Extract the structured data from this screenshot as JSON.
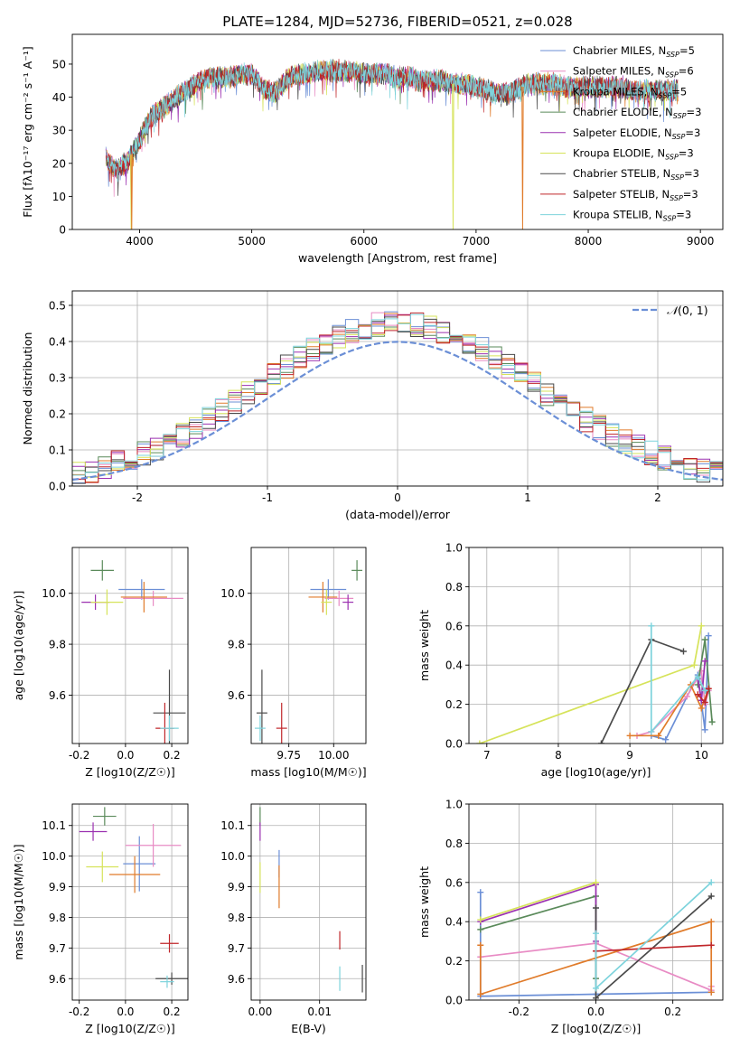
{
  "figure": {
    "title": "PLATE=1284, MJD=52736, FIBERID=0521, z=0.028"
  },
  "colors": {
    "Chabrier MILES": "#6b8fd6",
    "Salpeter MILES": "#e88bc4",
    "Kroupa MILES": "#e07b2a",
    "Chabrier ELODIE": "#5a8a5a",
    "Salpeter ELODIE": "#9b30b0",
    "Kroupa ELODIE": "#d6e35a",
    "Chabrier STELIB": "#4a4a4a",
    "Salpeter STELIB": "#c0262a",
    "Kroupa STELIB": "#7dd3dc"
  },
  "legend": [
    {
      "name": "Chabrier MILES",
      "label": "Chabrier MILES, N",
      "sub": "SSP",
      "tail": "=5"
    },
    {
      "name": "Salpeter MILES",
      "label": "Salpeter MILES, N",
      "sub": "SSP",
      "tail": "=6"
    },
    {
      "name": "Kroupa MILES",
      "label": "Kroupa MILES, N",
      "sub": "SSP",
      "tail": "=5"
    },
    {
      "name": "Chabrier ELODIE",
      "label": "Chabrier ELODIE, N",
      "sub": "SSP",
      "tail": "=3"
    },
    {
      "name": "Salpeter ELODIE",
      "label": "Salpeter ELODIE, N",
      "sub": "SSP",
      "tail": "=3"
    },
    {
      "name": "Kroupa ELODIE",
      "label": "Kroupa ELODIE, N",
      "sub": "SSP",
      "tail": "=3"
    },
    {
      "name": "Chabrier STELIB",
      "label": "Chabrier STELIB, N",
      "sub": "SSP",
      "tail": "=3"
    },
    {
      "name": "Salpeter STELIB",
      "label": "Salpeter STELIB, N",
      "sub": "SSP",
      "tail": "=3"
    },
    {
      "name": "Kroupa STELIB",
      "label": "Kroupa STELIB, N",
      "sub": "SSP",
      "tail": "=3"
    }
  ],
  "chart_data": [
    {
      "id": "spectrum",
      "type": "line",
      "xlabel": "wavelength [Angstrom, rest frame]",
      "ylabel": "Flux [fλ10⁻¹⁷ erg cm⁻² s⁻¹ A⁻¹]",
      "xlim": [
        3400,
        9200
      ],
      "ylim": [
        0,
        59
      ],
      "xticks": [
        4000,
        5000,
        6000,
        7000,
        8000,
        9000
      ],
      "yticks": [
        0,
        10,
        20,
        30,
        40,
        50
      ],
      "grid": false,
      "legend_position": "top-right",
      "continuum": {
        "x": [
          3700,
          3750,
          3800,
          3900,
          4000,
          4100,
          4200,
          4300,
          4400,
          4500,
          4600,
          4700,
          4800,
          4900,
          5000,
          5100,
          5200,
          5300,
          5400,
          5500,
          5600,
          5700,
          5800,
          5900,
          6000,
          6100,
          6200,
          6300,
          6400,
          6500,
          6600,
          6700,
          6800,
          6900,
          7000,
          7100,
          7200,
          7300,
          7400,
          7500,
          7600,
          7700,
          7800,
          7900,
          8000,
          8100,
          8200,
          8300,
          8400,
          8500,
          8600,
          8700,
          8800
        ],
        "y": [
          22,
          19,
          18,
          21,
          27,
          34,
          37,
          39,
          42,
          44,
          46,
          46,
          46,
          47,
          47,
          43,
          41,
          45,
          47,
          47,
          48,
          48,
          48,
          48,
          47,
          47,
          47,
          46,
          46,
          45,
          45,
          45,
          44,
          44,
          43,
          42,
          41,
          41,
          43,
          44,
          44,
          44,
          43,
          43,
          43,
          43,
          43,
          43,
          42,
          42,
          42,
          42,
          42
        ]
      },
      "dips": [
        {
          "series": "Kroupa ELODIE",
          "x": 3925,
          "to": 0
        },
        {
          "series": "Kroupa MILES",
          "x": 3930,
          "to": 0
        },
        {
          "series": "Kroupa ELODIE",
          "x": 6795,
          "to": 0
        },
        {
          "series": "Kroupa MILES",
          "x": 7415,
          "to": 0
        }
      ]
    },
    {
      "id": "residuals",
      "type": "histogram",
      "xlabel": "(data-model)/error",
      "ylabel": "Normed distribution",
      "xlim": [
        -2.5,
        2.5
      ],
      "ylim": [
        0,
        0.54
      ],
      "xticks": [
        -2,
        -1,
        0,
        1,
        2
      ],
      "yticks": [
        0,
        0.1,
        0.2,
        0.3,
        0.4,
        0.5
      ],
      "grid": true,
      "bin_width": 0.1,
      "reference_curve": {
        "name": "N(0,1)",
        "mean": 0,
        "sigma": 1,
        "color": "#6b8fd6"
      },
      "legend_position": "top-right"
    },
    {
      "id": "age_vs_Z",
      "type": "errorbar",
      "xlabel": "Z [log10(Z/Z☉)]",
      "ylabel": "age  [log10(age/yr)]",
      "xlim": [
        -0.23,
        0.27
      ],
      "ylim": [
        9.41,
        10.18
      ],
      "xticks": [
        -0.2,
        0.0,
        0.2
      ],
      "yticks": [
        9.6,
        9.8,
        10.0
      ],
      "grid": true,
      "points": [
        {
          "series": "Chabrier MILES",
          "x": 0.07,
          "y": 10.015,
          "xerr": 0.1,
          "yerr": 0.04
        },
        {
          "series": "Salpeter MILES",
          "x": 0.12,
          "y": 9.98,
          "xerr": 0.13,
          "yerr": 0.03
        },
        {
          "series": "Kroupa MILES",
          "x": 0.08,
          "y": 9.985,
          "xerr": 0.1,
          "yerr": 0.06
        },
        {
          "series": "Chabrier ELODIE",
          "x": -0.1,
          "y": 10.09,
          "xerr": 0.05,
          "yerr": 0.04
        },
        {
          "series": "Salpeter ELODIE",
          "x": -0.13,
          "y": 9.965,
          "xerr": 0.06,
          "yerr": 0.03
        },
        {
          "series": "Kroupa ELODIE",
          "x": -0.08,
          "y": 9.965,
          "xerr": 0.07,
          "yerr": 0.05
        },
        {
          "series": "Chabrier STELIB",
          "x": 0.19,
          "y": 9.53,
          "xerr": 0.07,
          "yerr": 0.17
        },
        {
          "series": "Salpeter STELIB",
          "x": 0.17,
          "y": 9.47,
          "xerr": 0.04,
          "yerr": 0.1
        },
        {
          "series": "Kroupa STELIB",
          "x": 0.19,
          "y": 9.47,
          "xerr": 0.04,
          "yerr": 0.05
        }
      ]
    },
    {
      "id": "age_vs_mass",
      "type": "errorbar",
      "xlabel": "mass [log10(M/M☉)]",
      "ylabel": "",
      "xlim": [
        9.54,
        10.18
      ],
      "ylim": [
        9.41,
        10.18
      ],
      "xticks": [
        9.75,
        10.0
      ],
      "yticks": [
        9.6,
        9.8,
        10.0
      ],
      "grid": true,
      "points": [
        {
          "series": "Chabrier MILES",
          "x": 9.97,
          "y": 10.015,
          "xerr": 0.1,
          "yerr": 0.04
        },
        {
          "series": "Salpeter MILES",
          "x": 10.03,
          "y": 9.98,
          "xerr": 0.08,
          "yerr": 0.03
        },
        {
          "series": "Kroupa MILES",
          "x": 9.94,
          "y": 9.985,
          "xerr": 0.08,
          "yerr": 0.06
        },
        {
          "series": "Chabrier ELODIE",
          "x": 10.13,
          "y": 10.09,
          "xerr": 0.03,
          "yerr": 0.04
        },
        {
          "series": "Salpeter ELODIE",
          "x": 10.08,
          "y": 9.965,
          "xerr": 0.03,
          "yerr": 0.03
        },
        {
          "series": "Kroupa ELODIE",
          "x": 9.96,
          "y": 9.965,
          "xerr": 0.03,
          "yerr": 0.05
        },
        {
          "series": "Chabrier STELIB",
          "x": 9.6,
          "y": 9.53,
          "xerr": 0.03,
          "yerr": 0.17
        },
        {
          "series": "Salpeter STELIB",
          "x": 9.71,
          "y": 9.47,
          "xerr": 0.03,
          "yerr": 0.1
        },
        {
          "series": "Kroupa STELIB",
          "x": 9.59,
          "y": 9.47,
          "xerr": 0.03,
          "yerr": 0.05
        }
      ]
    },
    {
      "id": "massweight_vs_age",
      "type": "line",
      "xlabel": "age  [log10(age/yr)]",
      "ylabel": "mass weight",
      "xlim": [
        6.75,
        10.3
      ],
      "ylim": [
        0,
        1.0
      ],
      "xticks": [
        7,
        8,
        9,
        10
      ],
      "yticks": [
        0.0,
        0.2,
        0.4,
        0.6,
        0.8,
        1.0
      ],
      "grid": true,
      "series": [
        {
          "name": "Chabrier MILES",
          "x": [
            9.3,
            9.5,
            9.95,
            10.05,
            10.1
          ],
          "y": [
            0.04,
            0.02,
            0.35,
            0.07,
            0.55
          ]
        },
        {
          "name": "Salpeter MILES",
          "x": [
            9.1,
            9.3,
            9.8,
            10.0,
            10.05,
            10.1
          ],
          "y": [
            0.04,
            0.06,
            0.24,
            0.37,
            0.2,
            0.27
          ]
        },
        {
          "name": "Kroupa MILES",
          "x": [
            9.0,
            9.4,
            9.85,
            10.0,
            10.1
          ],
          "y": [
            0.04,
            0.04,
            0.3,
            0.18,
            0.28
          ]
        },
        {
          "name": "Chabrier ELODIE",
          "x": [
            9.95,
            10.05,
            10.15
          ],
          "y": [
            0.3,
            0.53,
            0.11
          ]
        },
        {
          "name": "Salpeter ELODIE",
          "x": [
            9.95,
            10.0,
            10.05
          ],
          "y": [
            0.33,
            0.22,
            0.42
          ]
        },
        {
          "name": "Kroupa ELODIE",
          "x": [
            6.9,
            9.9,
            10.0
          ],
          "y": [
            0.0,
            0.4,
            0.6
          ]
        },
        {
          "name": "Chabrier STELIB",
          "x": [
            8.6,
            9.3,
            9.75
          ],
          "y": [
            0.0,
            0.53,
            0.47
          ]
        },
        {
          "name": "Salpeter STELIB",
          "x": [
            9.95,
            10.05,
            10.1
          ],
          "y": [
            0.25,
            0.21,
            0.28
          ]
        },
        {
          "name": "Kroupa STELIB",
          "x": [
            9.3,
            9.3,
            9.95,
            10.05
          ],
          "y": [
            0.6,
            0.06,
            0.34,
            0.27
          ]
        }
      ]
    },
    {
      "id": "mass_vs_Z",
      "type": "errorbar",
      "xlabel": "Z [log10(Z/Z☉)]",
      "ylabel": "mass [log10(M/M☉)]",
      "xlim": [
        -0.23,
        0.27
      ],
      "ylim": [
        9.53,
        10.17
      ],
      "xticks": [
        -0.2,
        0.0,
        0.2
      ],
      "yticks": [
        9.6,
        9.7,
        9.8,
        9.9,
        10.0,
        10.1
      ],
      "grid": true,
      "points": [
        {
          "series": "Chabrier MILES",
          "x": 0.06,
          "y": 9.975,
          "xerr": 0.07,
          "yerr": 0.09
        },
        {
          "series": "Salpeter MILES",
          "x": 0.12,
          "y": 10.035,
          "xerr": 0.12,
          "yerr": 0.07
        },
        {
          "series": "Kroupa MILES",
          "x": 0.04,
          "y": 9.94,
          "xerr": 0.11,
          "yerr": 0.06
        },
        {
          "series": "Chabrier ELODIE",
          "x": -0.09,
          "y": 10.13,
          "xerr": 0.05,
          "yerr": 0.03
        },
        {
          "series": "Salpeter ELODIE",
          "x": -0.14,
          "y": 10.08,
          "xerr": 0.06,
          "yerr": 0.03
        },
        {
          "series": "Kroupa ELODIE",
          "x": -0.1,
          "y": 9.965,
          "xerr": 0.07,
          "yerr": 0.05
        },
        {
          "series": "Chabrier STELIB",
          "x": 0.2,
          "y": 9.6,
          "xerr": 0.07,
          "yerr": 0.02
        },
        {
          "series": "Salpeter STELIB",
          "x": 0.19,
          "y": 9.715,
          "xerr": 0.04,
          "yerr": 0.03
        },
        {
          "series": "Kroupa STELIB",
          "x": 0.18,
          "y": 9.59,
          "xerr": 0.03,
          "yerr": 0.02
        }
      ]
    },
    {
      "id": "mass_vs_ebv",
      "type": "errorbar",
      "xlabel": "E(B-V)",
      "ylabel": "",
      "xlim": [
        -0.0015,
        0.0178
      ],
      "ylim": [
        9.53,
        10.17
      ],
      "xticks": [
        0.0,
        0.01
      ],
      "xtick_labels": [
        "0.00",
        "0.01"
      ],
      "yticks": [
        9.6,
        9.7,
        9.8,
        9.9,
        10.0,
        10.1
      ],
      "grid": true,
      "points": [
        {
          "series": "Chabrier MILES",
          "x": 0.0032,
          "y": 9.975,
          "xerr": 0,
          "yerr": 0.045
        },
        {
          "series": "Kroupa MILES",
          "x": 0.0032,
          "y": 9.9,
          "xerr": 0,
          "yerr": 0.07
        },
        {
          "series": "Chabrier ELODIE",
          "x": 0.0,
          "y": 10.13,
          "xerr": 0,
          "yerr": 0.03
        },
        {
          "series": "Salpeter ELODIE",
          "x": 0.0,
          "y": 10.08,
          "xerr": 0,
          "yerr": 0.03
        },
        {
          "series": "Kroupa ELODIE",
          "x": 0.0,
          "y": 9.93,
          "xerr": 0,
          "yerr": 0.05
        },
        {
          "series": "Chabrier STELIB",
          "x": 0.0172,
          "y": 9.6,
          "xerr": 0,
          "yerr": 0.045
        },
        {
          "series": "Salpeter STELIB",
          "x": 0.0134,
          "y": 9.725,
          "xerr": 0,
          "yerr": 0.03
        },
        {
          "series": "Kroupa STELIB",
          "x": 0.0134,
          "y": 9.6,
          "xerr": 0,
          "yerr": 0.04
        }
      ]
    },
    {
      "id": "massweight_vs_Z",
      "type": "line",
      "xlabel": "Z [log10(Z/Z☉)]",
      "ylabel": "mass weight",
      "xlim": [
        -0.33,
        0.33
      ],
      "ylim": [
        0,
        1.0
      ],
      "xticks": [
        -0.2,
        0.0,
        0.2
      ],
      "yticks": [
        0.0,
        0.2,
        0.4,
        0.6,
        0.8,
        1.0
      ],
      "grid": true,
      "series": [
        {
          "name": "Chabrier MILES",
          "x": [
            -0.3,
            -0.3,
            0.0,
            0.3
          ],
          "y": [
            0.55,
            0.02,
            0.03,
            0.04
          ]
        },
        {
          "name": "Salpeter MILES",
          "x": [
            -0.3,
            0.0,
            0.3,
            0.3
          ],
          "y": [
            0.22,
            0.29,
            0.05,
            0.07
          ]
        },
        {
          "name": "Kroupa MILES",
          "x": [
            -0.3,
            -0.3,
            0.3,
            0.3
          ],
          "y": [
            0.28,
            0.03,
            0.4,
            0.04
          ]
        },
        {
          "name": "Chabrier ELODIE",
          "x": [
            -0.3,
            0.0,
            0.0
          ],
          "y": [
            0.36,
            0.53,
            0.11
          ]
        },
        {
          "name": "Salpeter ELODIE",
          "x": [
            -0.3,
            0.0,
            0.0
          ],
          "y": [
            0.4,
            0.59,
            0.3
          ]
        },
        {
          "name": "Kroupa ELODIE",
          "x": [
            -0.3,
            0.0
          ],
          "y": [
            0.41,
            0.6
          ]
        },
        {
          "name": "Chabrier STELIB",
          "x": [
            0.0,
            0.0,
            0.3
          ],
          "y": [
            0.47,
            0.01,
            0.53
          ]
        },
        {
          "name": "Salpeter STELIB",
          "x": [
            0.0,
            0.3
          ],
          "y": [
            0.25,
            0.28
          ]
        },
        {
          "name": "Kroupa STELIB",
          "x": [
            0.0,
            0.0,
            0.3
          ],
          "y": [
            0.34,
            0.06,
            0.6
          ]
        }
      ]
    }
  ]
}
